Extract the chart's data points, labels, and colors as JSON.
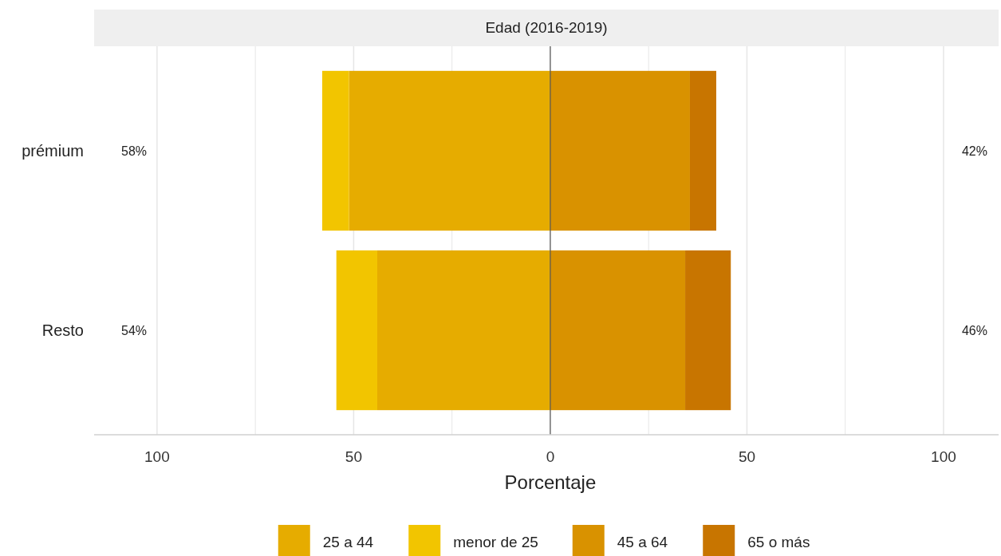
{
  "chart_data": {
    "type": "bar",
    "orientation": "horizontal",
    "stacked": true,
    "title": "Edad (2016-2019)",
    "xlabel": "Porcentaje",
    "categories": [
      "prémium",
      "Resto"
    ],
    "series": [
      {
        "name": "25 a 44",
        "color": "#e6ac00",
        "values": [
          -51.2,
          -44
        ]
      },
      {
        "name": "menor de 25",
        "color": "#f2c500",
        "values": [
          -6.8,
          -10.4
        ]
      },
      {
        "name": "45 a 64",
        "color": "#d99200",
        "values": [
          35.5,
          34.3
        ]
      },
      {
        "name": "65 o más",
        "color": "#c87500",
        "values": [
          6.7,
          11.6
        ]
      }
    ],
    "xlim": [
      -116,
      114
    ],
    "xticks": [
      {
        "value": -100,
        "label": "100"
      },
      {
        "value": -75,
        "label": null
      },
      {
        "value": -50,
        "label": "50"
      },
      {
        "value": -25,
        "label": null
      },
      0,
      {
        "value": 25,
        "label": null
      },
      {
        "value": 50,
        "label": "50"
      },
      {
        "value": 75,
        "label": null
      },
      100
    ],
    "grid": "x",
    "legend": "bottom",
    "ref_lines": [
      {
        "axis": "x",
        "value": 0,
        "color": "#555555"
      }
    ],
    "annotations": [
      "58%",
      "42%",
      "54%",
      "46%"
    ]
  }
}
